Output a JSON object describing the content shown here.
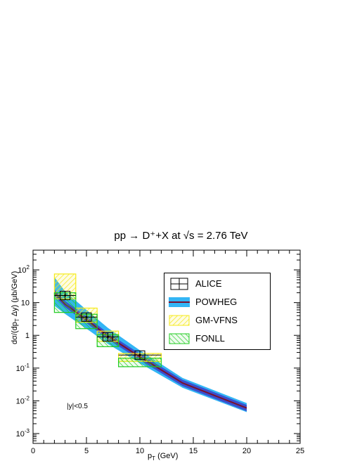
{
  "chart_data": {
    "type": "line",
    "title": "pp → D⁺+X at √s = 2.76 TeV",
    "xlabel": "p_T (GeV)",
    "ylabel": "dσ/(dp_T Δy) (μb/GeV)",
    "annotation": "|y|<0.5",
    "xlim": [
      0,
      25
    ],
    "ylim": [
      0.0005,
      400
    ],
    "y_scale": "log",
    "x_ticks": [
      0,
      5,
      10,
      15,
      20,
      25
    ],
    "y_ticks": [
      0.001,
      0.01,
      0.1,
      1,
      10,
      100
    ],
    "y_tick_labels": [
      "10^-3",
      "10^-2",
      "10^-1",
      "1",
      "10",
      "10^2"
    ],
    "legend_position": "top-right",
    "legend": [
      "ALICE",
      "POWHEG",
      "GM-VFNS",
      "FONLL"
    ],
    "colors": {
      "alice": "#000000",
      "powheg_band": "#33b5f5",
      "powheg_central": "#7a1030",
      "powheg_inner": "#3b3fc8",
      "gmvfns": "#f5ea1a",
      "fonll": "#22cc22"
    },
    "alice": {
      "x": [
        3,
        5,
        7,
        10
      ],
      "xerr": [
        1,
        1,
        1,
        2
      ],
      "y": [
        16.5,
        3.6,
        0.9,
        0.25
      ],
      "syst_box_half_y_fraction": 0.35
    },
    "powheg": {
      "x": [
        2,
        3,
        5,
        7,
        10,
        14,
        20
      ],
      "central": [
        20,
        9,
        3.0,
        0.95,
        0.22,
        0.035,
        0.006
      ],
      "low": [
        8,
        4.5,
        1.6,
        0.55,
        0.14,
        0.025,
        0.0045
      ],
      "high": [
        60,
        22,
        6.0,
        1.7,
        0.35,
        0.05,
        0.0085
      ]
    },
    "gmvfns": {
      "bins": [
        [
          2,
          4
        ],
        [
          4,
          6
        ],
        [
          6,
          8
        ],
        [
          8,
          12
        ]
      ],
      "low": [
        13,
        2.5,
        0.65,
        0.16
      ],
      "high": [
        75,
        6.8,
        1.35,
        0.28
      ]
    },
    "fonll": {
      "bins": [
        [
          2,
          4
        ],
        [
          4,
          6
        ],
        [
          6,
          8
        ],
        [
          8,
          12
        ]
      ],
      "low": [
        5,
        1.6,
        0.45,
        0.11
      ],
      "high": [
        20,
        4.4,
        1.05,
        0.2
      ]
    }
  }
}
